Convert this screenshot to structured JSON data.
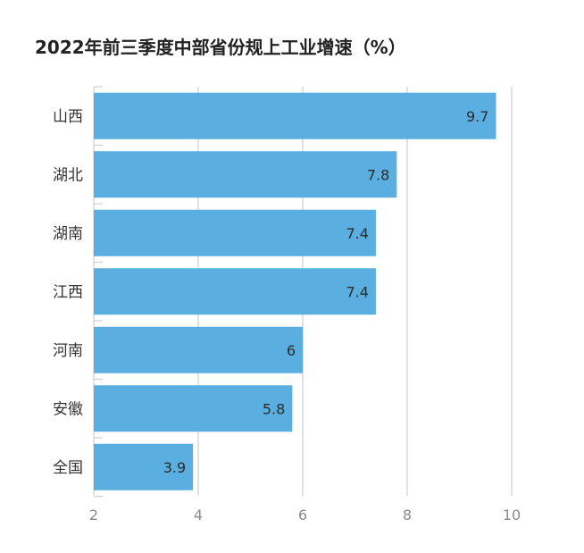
{
  "chart_data": {
    "type": "bar",
    "orientation": "horizontal",
    "title": "2022年前三季度中部省份规上工业增速（%）",
    "categories": [
      "山西",
      "湖北",
      "湖南",
      "江西",
      "河南",
      "安徽",
      "全国"
    ],
    "values": [
      9.7,
      7.8,
      7.4,
      7.4,
      6,
      5.8,
      3.9
    ],
    "value_labels": [
      "9.7",
      "7.8",
      "7.4",
      "7.4",
      "6",
      "5.8",
      "3.9"
    ],
    "xlim": [
      2,
      10
    ],
    "xticks": [
      2,
      4,
      6,
      8,
      10
    ],
    "xtick_labels": [
      "2",
      "4",
      "6",
      "8",
      "10"
    ],
    "grid": true,
    "legend": "none",
    "bar_color": "#5aafe0",
    "grid_color": "#cfcfcf"
  }
}
